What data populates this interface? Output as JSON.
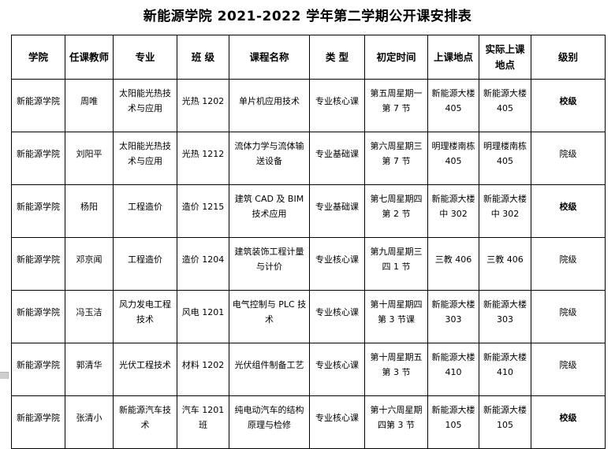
{
  "page": {
    "title": "新能源学院 2021-2022 学年第二学期公开课安排表"
  },
  "table": {
    "headers": [
      "学院",
      "任课教师",
      "专业",
      "班 级",
      "课程名称",
      "类 型",
      "初定时间",
      "上课地点",
      "实际上课地点",
      "级别"
    ],
    "column_keys": [
      "college",
      "teacher",
      "major",
      "class_name",
      "course",
      "type",
      "time",
      "location",
      "actual_location",
      "level"
    ],
    "rows": [
      {
        "college": "新能源学院",
        "teacher": "周唯",
        "major": "太阳能光热技术与应用",
        "class_name": "光热 1202",
        "course": "单片机应用技术",
        "type": "专业核心课",
        "time": "第五周星期一第 7 节",
        "location": "新能源大楼 405",
        "actual_location": "新能源大楼 405",
        "level": "校级",
        "level_bold": true
      },
      {
        "college": "新能源学院",
        "teacher": "刘阳平",
        "major": "太阳能光热技术与应用",
        "class_name": "光热 1212",
        "course": "流体力学与流体输送设备",
        "type": "专业基础课",
        "time": "第六周星期三第 7 节",
        "location": "明理楼南栋 405",
        "actual_location": "明理楼南栋 405",
        "level": "院级",
        "level_bold": false
      },
      {
        "college": "新能源学院",
        "teacher": "杨阳",
        "major": "工程造价",
        "class_name": "造价 1215",
        "course": "建筑 CAD 及 BIM 技术应用",
        "type": "专业基础课",
        "time": "第七周星期四第 2 节",
        "location": "新能源大楼中 302",
        "actual_location": "新能源大楼中 302",
        "level": "校级",
        "level_bold": true
      },
      {
        "college": "新能源学院",
        "teacher": "邓京闻",
        "major": "工程造价",
        "class_name": "造价 1204",
        "course": "建筑装饰工程计量与计价",
        "type": "专业核心课",
        "time": "第九周星期三四 1 节",
        "location": "三教 406",
        "actual_location": "三教 406",
        "level": "院级",
        "level_bold": false
      },
      {
        "college": "新能源学院",
        "teacher": "冯玉洁",
        "major": "风力发电工程技术",
        "class_name": "风电 1201",
        "course": "电气控制与 PLC 技术",
        "type": "专业核心课",
        "time": "第十周星期四第 3 节课",
        "location": "新能源大楼 303",
        "actual_location": "新能源大楼 303",
        "level": "院级",
        "level_bold": false
      },
      {
        "college": "新能源学院",
        "teacher": "郭清华",
        "major": "光伏工程技术",
        "class_name": "材料 1202",
        "course": "光伏组件制备工艺",
        "type": "专业核心课",
        "time": "第十周星期五第 3 节",
        "location": "新能源大楼 410",
        "actual_location": "新能源大楼 410",
        "level": "院级",
        "level_bold": false
      },
      {
        "college": "新能源学院",
        "teacher": "张清小",
        "major": "新能源汽车技术",
        "class_name": "汽车 1201 班",
        "course": "纯电动汽车的结构原理与检修",
        "type": "专业核心课",
        "time": "第十六周星期四第 3 节",
        "location": "新能源大楼 105",
        "actual_location": "新能源大楼 105",
        "level": "校级",
        "level_bold": true
      }
    ]
  }
}
